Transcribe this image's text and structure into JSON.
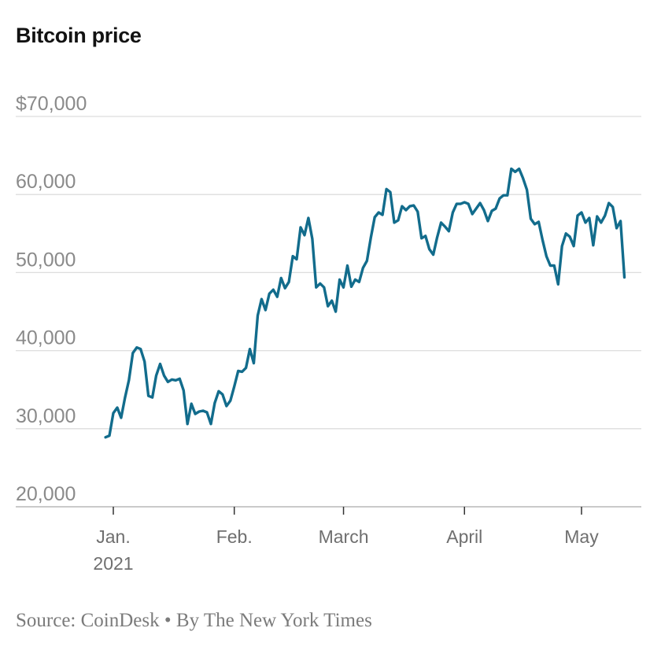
{
  "chart_data": {
    "type": "line",
    "title": "Bitcoin price",
    "xlabel": "",
    "ylabel": "",
    "ylim": [
      20000,
      70000
    ],
    "y_ticks": [
      {
        "value": 70000,
        "label": "$70,000"
      },
      {
        "value": 60000,
        "label": "60,000"
      },
      {
        "value": 50000,
        "label": "50,000"
      },
      {
        "value": 40000,
        "label": "40,000"
      },
      {
        "value": 30000,
        "label": "30,000"
      },
      {
        "value": 20000,
        "label": "20,000"
      }
    ],
    "x_ticks": [
      {
        "date": "2021-01-01",
        "label": "Jan.",
        "sublabel": "2021"
      },
      {
        "date": "2021-02-01",
        "label": "Feb.",
        "sublabel": ""
      },
      {
        "date": "2021-03-01",
        "label": "March",
        "sublabel": ""
      },
      {
        "date": "2021-04-01",
        "label": "April",
        "sublabel": ""
      },
      {
        "date": "2021-05-01",
        "label": "May",
        "sublabel": ""
      }
    ],
    "grid": true,
    "series": [
      {
        "color": "#126c8c",
        "points": [
          [
            "2020-12-30",
            28900
          ],
          [
            "2020-12-31",
            29100
          ],
          [
            "2021-01-01",
            32000
          ],
          [
            "2021-01-02",
            32700
          ],
          [
            "2021-01-03",
            31400
          ],
          [
            "2021-01-04",
            34000
          ],
          [
            "2021-01-05",
            36200
          ],
          [
            "2021-01-06",
            39700
          ],
          [
            "2021-01-07",
            40400
          ],
          [
            "2021-01-08",
            40200
          ],
          [
            "2021-01-09",
            38600
          ],
          [
            "2021-01-10",
            34200
          ],
          [
            "2021-01-11",
            34000
          ],
          [
            "2021-01-12",
            36800
          ],
          [
            "2021-01-13",
            38300
          ],
          [
            "2021-01-14",
            36800
          ],
          [
            "2021-01-15",
            36000
          ],
          [
            "2021-01-16",
            36300
          ],
          [
            "2021-01-17",
            36200
          ],
          [
            "2021-01-18",
            36400
          ],
          [
            "2021-01-19",
            34900
          ],
          [
            "2021-01-20",
            30600
          ],
          [
            "2021-01-21",
            33200
          ],
          [
            "2021-01-22",
            31900
          ],
          [
            "2021-01-23",
            32200
          ],
          [
            "2021-01-24",
            32300
          ],
          [
            "2021-01-25",
            32100
          ],
          [
            "2021-01-26",
            30600
          ],
          [
            "2021-01-27",
            33300
          ],
          [
            "2021-01-28",
            34800
          ],
          [
            "2021-01-29",
            34400
          ],
          [
            "2021-01-30",
            32900
          ],
          [
            "2021-01-31",
            33600
          ],
          [
            "2021-02-01",
            35400
          ],
          [
            "2021-02-02",
            37400
          ],
          [
            "2021-02-03",
            37300
          ],
          [
            "2021-02-04",
            37800
          ],
          [
            "2021-02-05",
            40200
          ],
          [
            "2021-02-06",
            38400
          ],
          [
            "2021-02-07",
            44500
          ],
          [
            "2021-02-08",
            46600
          ],
          [
            "2021-02-09",
            45200
          ],
          [
            "2021-02-10",
            47300
          ],
          [
            "2021-02-11",
            47800
          ],
          [
            "2021-02-12",
            46900
          ],
          [
            "2021-02-13",
            49300
          ],
          [
            "2021-02-14",
            48000
          ],
          [
            "2021-02-15",
            48800
          ],
          [
            "2021-02-16",
            52100
          ],
          [
            "2021-02-17",
            51700
          ],
          [
            "2021-02-18",
            55800
          ],
          [
            "2021-02-19",
            54800
          ],
          [
            "2021-02-20",
            57000
          ],
          [
            "2021-02-21",
            54300
          ],
          [
            "2021-02-22",
            48100
          ],
          [
            "2021-02-23",
            48600
          ],
          [
            "2021-02-24",
            48100
          ],
          [
            "2021-02-25",
            45700
          ],
          [
            "2021-02-26",
            46400
          ],
          [
            "2021-02-27",
            45000
          ],
          [
            "2021-02-28",
            49100
          ],
          [
            "2021-03-01",
            48100
          ],
          [
            "2021-03-02",
            50900
          ],
          [
            "2021-03-03",
            48200
          ],
          [
            "2021-03-04",
            49100
          ],
          [
            "2021-03-05",
            48800
          ],
          [
            "2021-03-06",
            50600
          ],
          [
            "2021-03-07",
            51500
          ],
          [
            "2021-03-08",
            54500
          ],
          [
            "2021-03-09",
            57100
          ],
          [
            "2021-03-10",
            57700
          ],
          [
            "2021-03-11",
            57400
          ],
          [
            "2021-03-12",
            60700
          ],
          [
            "2021-03-13",
            60300
          ],
          [
            "2021-03-14",
            56400
          ],
          [
            "2021-03-15",
            56700
          ],
          [
            "2021-03-16",
            58500
          ],
          [
            "2021-03-17",
            58000
          ],
          [
            "2021-03-18",
            58500
          ],
          [
            "2021-03-19",
            58600
          ],
          [
            "2021-03-20",
            57800
          ],
          [
            "2021-03-21",
            54400
          ],
          [
            "2021-03-22",
            54700
          ],
          [
            "2021-03-23",
            53000
          ],
          [
            "2021-03-24",
            52300
          ],
          [
            "2021-03-25",
            54500
          ],
          [
            "2021-03-26",
            56400
          ],
          [
            "2021-03-27",
            55900
          ],
          [
            "2021-03-28",
            55300
          ],
          [
            "2021-03-29",
            57700
          ],
          [
            "2021-03-30",
            58800
          ],
          [
            "2021-03-31",
            58800
          ],
          [
            "2021-04-01",
            59000
          ],
          [
            "2021-04-02",
            58800
          ],
          [
            "2021-04-03",
            57500
          ],
          [
            "2021-04-04",
            58200
          ],
          [
            "2021-04-05",
            58900
          ],
          [
            "2021-04-06",
            58000
          ],
          [
            "2021-04-07",
            56600
          ],
          [
            "2021-04-08",
            57900
          ],
          [
            "2021-04-09",
            58200
          ],
          [
            "2021-04-10",
            59500
          ],
          [
            "2021-04-11",
            59900
          ],
          [
            "2021-04-12",
            59900
          ],
          [
            "2021-04-13",
            63300
          ],
          [
            "2021-04-14",
            62900
          ],
          [
            "2021-04-15",
            63300
          ],
          [
            "2021-04-16",
            62100
          ],
          [
            "2021-04-17",
            60600
          ],
          [
            "2021-04-18",
            56900
          ],
          [
            "2021-04-19",
            56200
          ],
          [
            "2021-04-20",
            56500
          ],
          [
            "2021-04-21",
            54200
          ],
          [
            "2021-04-22",
            52100
          ],
          [
            "2021-04-23",
            50900
          ],
          [
            "2021-04-24",
            50900
          ],
          [
            "2021-04-25",
            48500
          ],
          [
            "2021-04-26",
            53400
          ],
          [
            "2021-04-27",
            55000
          ],
          [
            "2021-04-28",
            54600
          ],
          [
            "2021-04-29",
            53400
          ],
          [
            "2021-04-30",
            57300
          ],
          [
            "2021-05-01",
            57700
          ],
          [
            "2021-05-02",
            56400
          ],
          [
            "2021-05-03",
            57000
          ],
          [
            "2021-05-04",
            53500
          ],
          [
            "2021-05-05",
            57200
          ],
          [
            "2021-05-06",
            56400
          ],
          [
            "2021-05-07",
            57300
          ],
          [
            "2021-05-08",
            58900
          ],
          [
            "2021-05-09",
            58400
          ],
          [
            "2021-05-10",
            55700
          ],
          [
            "2021-05-11",
            56600
          ],
          [
            "2021-05-12",
            49400
          ]
        ]
      }
    ]
  },
  "footer": {
    "source": "Source: CoinDesk",
    "separator": "•",
    "byline": "By The New York Times"
  }
}
